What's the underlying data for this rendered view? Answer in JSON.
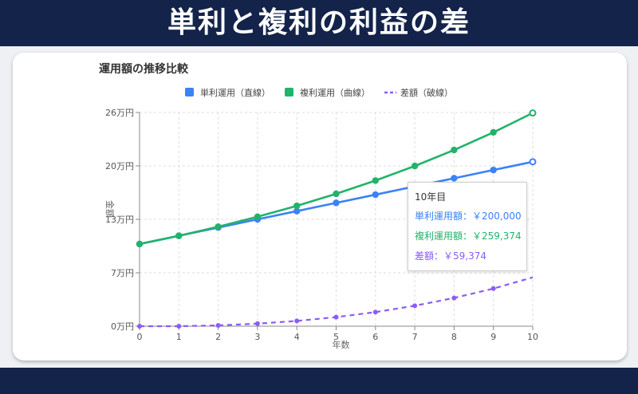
{
  "banner": {
    "title": "単利と複利の利益の差"
  },
  "chart_data": {
    "type": "line",
    "title": "運用額の推移比較",
    "xlabel": "年数",
    "ylabel": "金額",
    "x": [
      0,
      1,
      2,
      3,
      4,
      5,
      6,
      7,
      8,
      9,
      10
    ],
    "xlim": [
      0,
      10
    ],
    "ylim": [
      0,
      260000
    ],
    "y_ticks": [
      0,
      65000,
      130000,
      195000,
      260000
    ],
    "y_tick_labels": [
      "0万円",
      "7万円",
      "13万円",
      "20万円",
      "26万円"
    ],
    "x_tick_labels": [
      "0",
      "1",
      "2",
      "3",
      "4",
      "5",
      "6",
      "7",
      "8",
      "9",
      "10"
    ],
    "grid": true,
    "legend_position": "top-center",
    "series": [
      {
        "name": "単利運用（直線）",
        "color": "#3b82f6",
        "style": "solid",
        "values": [
          100000,
          110000,
          120000,
          130000,
          140000,
          150000,
          160000,
          170000,
          180000,
          190000,
          200000
        ]
      },
      {
        "name": "複利運用（曲線）",
        "color": "#22b36b",
        "style": "solid",
        "values": [
          100000,
          110000,
          121000,
          133100,
          146410,
          161051,
          177156,
          194872,
          214359,
          235795,
          259374
        ]
      },
      {
        "name": "差額（破線）",
        "color": "#8b5cf6",
        "style": "dashed",
        "values": [
          0,
          0,
          1000,
          3100,
          6410,
          11051,
          17156,
          24872,
          34359,
          45795,
          59374
        ]
      }
    ],
    "tooltip": {
      "title": "10年目",
      "lines": [
        {
          "text": "単利運用額：￥200,000",
          "color": "#3b82f6"
        },
        {
          "text": "複利運用額：￥259,374",
          "color": "#22b36b"
        },
        {
          "text": "差額：￥59,374",
          "color": "#8b5cf6"
        }
      ]
    }
  }
}
